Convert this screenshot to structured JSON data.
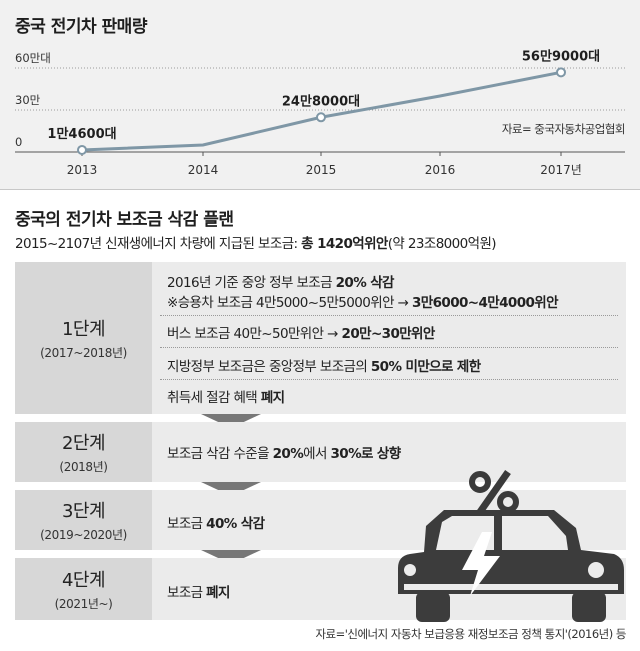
{
  "chart_data": {
    "type": "line",
    "title": "중국 전기차 판매량",
    "categories": [
      "2013",
      "2014",
      "2015",
      "2016",
      "2017년"
    ],
    "x": [
      2013,
      2014,
      2015,
      2016,
      2017
    ],
    "y_ticks": [
      "60만대",
      "30만",
      "0"
    ],
    "ylim": [
      0,
      600000
    ],
    "series": [
      {
        "values": [
          14600,
          50000,
          248000,
          400000,
          569000
        ]
      }
    ],
    "markers": [
      {
        "x": 2013,
        "y": 14600,
        "label": "1만4600대"
      },
      {
        "x": 2015,
        "y": 248000,
        "label": "24만8000대"
      },
      {
        "x": 2017,
        "y": 569000,
        "label": "56만9000대"
      }
    ],
    "source": "자료= 중국자동차공업협회",
    "grid": true,
    "line_color": "#7f97a6"
  },
  "plan": {
    "title": "중국의 전기차 보조금 삭감 플랜",
    "summary_prefix": "2015~2107년 신재생에너지 차량에 지급된 보조금: ",
    "summary_bold": "총 1420억위안",
    "summary_suffix": "(약 23조8000억원)",
    "stages": [
      {
        "name": "1단계",
        "period": "(2017~2018년)",
        "items": [
          {
            "a": "2016년 기준 중앙 정부 보조금 ",
            "b": "20% 삭감",
            "c": ""
          },
          {
            "a": "※승용차 보조금 4만5000~5만5000위안 → ",
            "b": "3만6000~4만4000위안",
            "c": ""
          },
          {
            "a": "버스 보조금 40만~50만위안 → ",
            "b": "20만~30만위안",
            "c": ""
          },
          {
            "a": "지방정부 보조금은 중앙정부 보조금의 ",
            "b": "50% 미만으로 제한",
            "c": ""
          },
          {
            "a": "취득세 절감 혜택 ",
            "b": "폐지",
            "c": ""
          }
        ]
      },
      {
        "name": "2단계",
        "period": "(2018년)",
        "items": [
          {
            "a": "보조금 삭감 수준을 ",
            "b": "20%",
            "c": "에서 ",
            "d": "30%로 상향"
          }
        ]
      },
      {
        "name": "3단계",
        "period": "(2019~2020년)",
        "items": [
          {
            "a": "보조금 ",
            "b": "40% 삭감",
            "c": ""
          }
        ]
      },
      {
        "name": "4단계",
        "period": "(2021년~)",
        "items": [
          {
            "a": "보조금 ",
            "b": "폐지",
            "c": ""
          }
        ]
      }
    ],
    "source": "자료='신에너지 자동차 보급응용 재정보조금 정책 통지'(2016년) 등"
  },
  "icons": {
    "illustration": "electric-car-percent-icon",
    "colors": {
      "car": "#3a3a3a",
      "bolt": "#ffffff",
      "percent": "#3a3a3a"
    }
  }
}
